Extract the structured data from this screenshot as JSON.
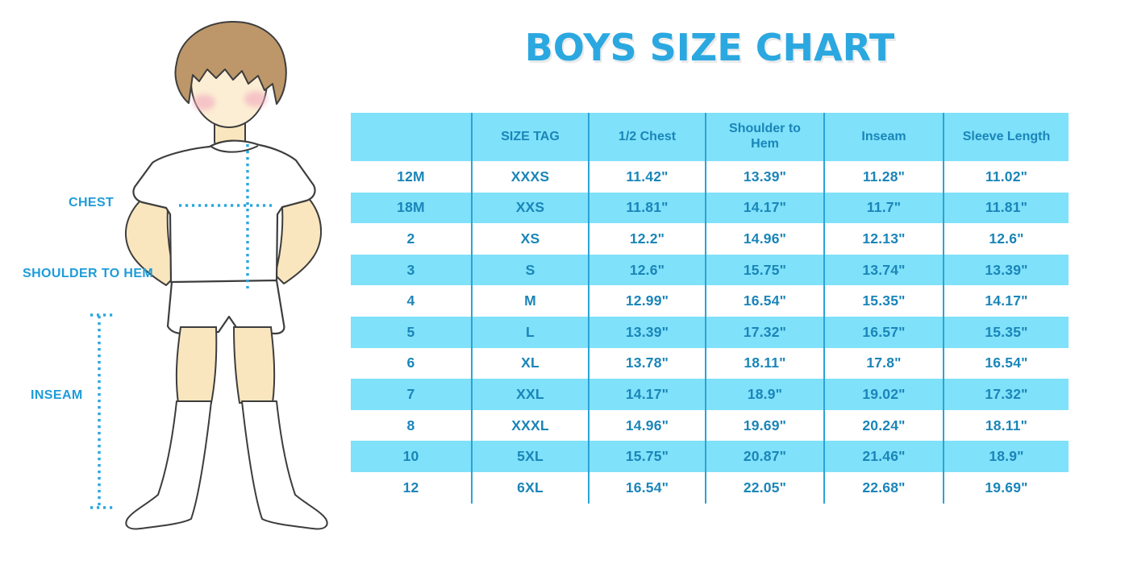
{
  "title": "BOYS SIZE CHART",
  "figure": {
    "labels": {
      "chest": "CHEST",
      "shoulder_to_hem": "SHOULDER TO HEM",
      "inseam": "INSEAM"
    }
  },
  "chart_data": {
    "type": "table",
    "title": "BOYS SIZE CHART",
    "unit": "inches",
    "columns": [
      "",
      "SIZE TAG",
      "1/2 Chest",
      "Shoulder to Hem",
      "Inseam",
      "Sleeve Length"
    ],
    "rows": [
      [
        "12M",
        "XXXS",
        "11.42\"",
        "13.39\"",
        "11.28\"",
        "11.02\""
      ],
      [
        "18M",
        "XXS",
        "11.81\"",
        "14.17\"",
        "11.7\"",
        "11.81\""
      ],
      [
        "2",
        "XS",
        "12.2\"",
        "14.96\"",
        "12.13\"",
        "12.6\""
      ],
      [
        "3",
        "S",
        "12.6\"",
        "15.75\"",
        "13.74\"",
        "13.39\""
      ],
      [
        "4",
        "M",
        "12.99\"",
        "16.54\"",
        "15.35\"",
        "14.17\""
      ],
      [
        "5",
        "L",
        "13.39\"",
        "17.32\"",
        "16.57\"",
        "15.35\""
      ],
      [
        "6",
        "XL",
        "13.78\"",
        "18.11\"",
        "17.8\"",
        "16.54\""
      ],
      [
        "7",
        "XXL",
        "14.17\"",
        "18.9\"",
        "19.02\"",
        "17.32\""
      ],
      [
        "8",
        "XXXL",
        "14.96\"",
        "19.69\"",
        "20.24\"",
        "18.11\""
      ],
      [
        "10",
        "5XL",
        "15.75\"",
        "20.87\"",
        "21.46\"",
        "18.9\""
      ],
      [
        "12",
        "6XL",
        "16.54\"",
        "22.05\"",
        "22.68\"",
        "19.69\""
      ]
    ],
    "layout": {
      "striped": true,
      "stripe_color": "#7FE1FA",
      "grid": "vertical-only",
      "header_background": "#7FE1FA"
    }
  },
  "colors": {
    "title_blue": "#2BA8E0",
    "label_blue": "#1E9CD8",
    "table_text": "#1A85B8",
    "row_cyan": "#7FE1FA",
    "grid_line": "#2BA3D6",
    "dot_blue": "#29A7DF",
    "skin": "#FAE6BE",
    "face": "#FCEED4",
    "hair": "#BD9769",
    "blush": "#F3AFC0",
    "outline": "#3D3D3D",
    "background": "#FFFFFF"
  }
}
